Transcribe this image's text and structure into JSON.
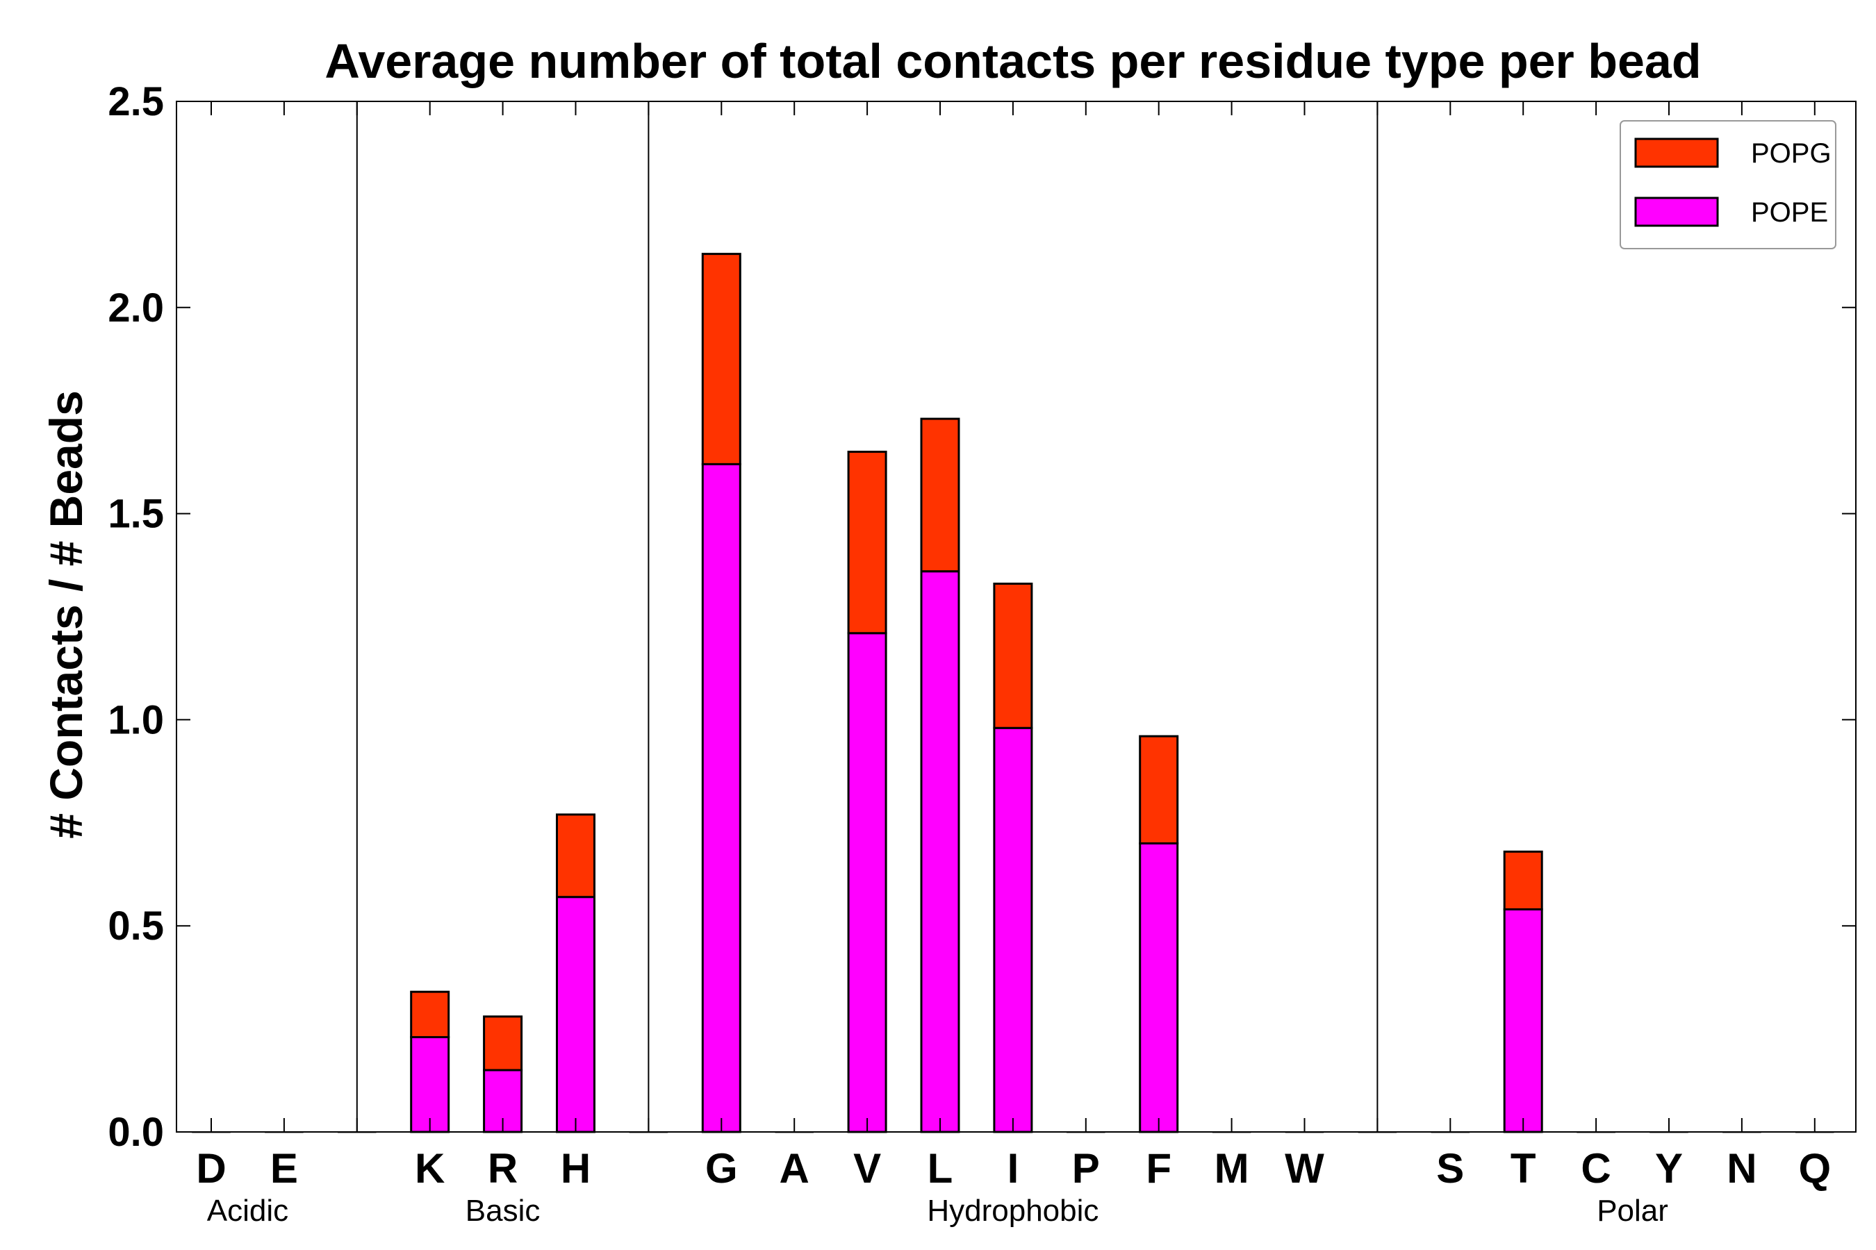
{
  "chart_data": {
    "type": "bar",
    "stacked": true,
    "title": "Average number of total contacts per residue type per bead",
    "xlabel": "",
    "ylabel": "# Contacts / # Beads",
    "ylim": [
      0,
      2.5
    ],
    "yticks": [
      "0.0",
      "0.5",
      "1.0",
      "1.5",
      "2.0",
      "2.5"
    ],
    "grid": false,
    "legend_position": "top-right",
    "categories": [
      "D",
      "E",
      "",
      "K",
      "R",
      "H",
      "",
      "G",
      "A",
      "V",
      "L",
      "I",
      "P",
      "F",
      "M",
      "W",
      "",
      "S",
      "T",
      "C",
      "Y",
      "N",
      "Q"
    ],
    "series": [
      {
        "name": "POPE",
        "color": "#ff00ff",
        "values": [
          0,
          0,
          0,
          0.23,
          0.15,
          0.57,
          0,
          1.62,
          0,
          1.21,
          1.36,
          0.98,
          0,
          0.7,
          0,
          0,
          0,
          0,
          0.54,
          0,
          0,
          0,
          0
        ]
      },
      {
        "name": "POPG",
        "color": "#ff3300",
        "values": [
          0,
          0,
          0,
          0.11,
          0.13,
          0.2,
          0,
          0.51,
          0,
          0.44,
          0.37,
          0.35,
          0,
          0.26,
          0,
          0,
          0,
          0,
          0.14,
          0,
          0,
          0,
          0
        ]
      }
    ],
    "legend_order": [
      "POPG",
      "POPE"
    ],
    "groups": [
      {
        "label": "Acidic",
        "start": 0,
        "end": 1
      },
      {
        "label": "Basic",
        "start": 3,
        "end": 5
      },
      {
        "label": "Hydrophobic",
        "start": 7,
        "end": 15
      },
      {
        "label": "Polar",
        "start": 17,
        "end": 22
      }
    ],
    "separators_after_index": [
      2,
      6,
      16
    ]
  }
}
